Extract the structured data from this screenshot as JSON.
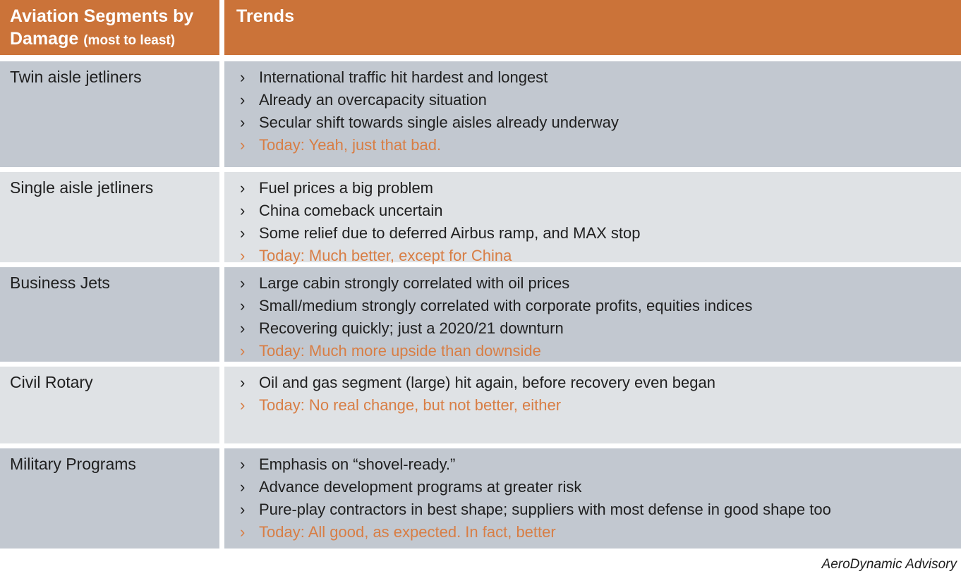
{
  "bullet_glyph": "›",
  "colors": {
    "header_orange": "#cb7339",
    "today_orange": "#d87e45",
    "row_dark_gray": "#c2c8d0",
    "row_light_gray": "#dfe2e5",
    "body_text": "#1f1f1f",
    "header_text": "#ffffff"
  },
  "table": {
    "header": {
      "col1_line1": "Aviation Segments by",
      "col1_line2": "Damage",
      "col1_suffix": "(most to least)",
      "col2": "Trends"
    },
    "rows": [
      {
        "segment": "Twin aisle jetliners",
        "bullets": [
          "International traffic hit hardest and longest",
          "Already an overcapacity situation",
          "Secular shift towards single aisles already underway"
        ],
        "today": "Today: Yeah, just that bad."
      },
      {
        "segment": "Single aisle jetliners",
        "bullets": [
          "Fuel prices a big problem",
          "China comeback uncertain",
          "Some relief due to deferred Airbus ramp, and MAX stop"
        ],
        "today": "Today: Much better, except for China"
      },
      {
        "segment": "Business Jets",
        "bullets": [
          "Large cabin strongly correlated with oil prices",
          "Small/medium strongly correlated with corporate profits, equities indices",
          "Recovering quickly; just a 2020/21 downturn"
        ],
        "today": "Today: Much more upside than downside"
      },
      {
        "segment": "Civil Rotary",
        "bullets": [
          "Oil and gas segment (large) hit again, before recovery even began"
        ],
        "today": "Today: No real change, but not better, either"
      },
      {
        "segment": "Military Programs",
        "bullets": [
          "Emphasis on “shovel-ready.”",
          "Advance development programs at greater risk",
          "Pure-play contractors in best shape; suppliers with most defense in good shape too"
        ],
        "today": "Today: All good, as expected. In fact, better"
      }
    ]
  },
  "footer": {
    "brand": "AeroDynamic Advisory"
  }
}
